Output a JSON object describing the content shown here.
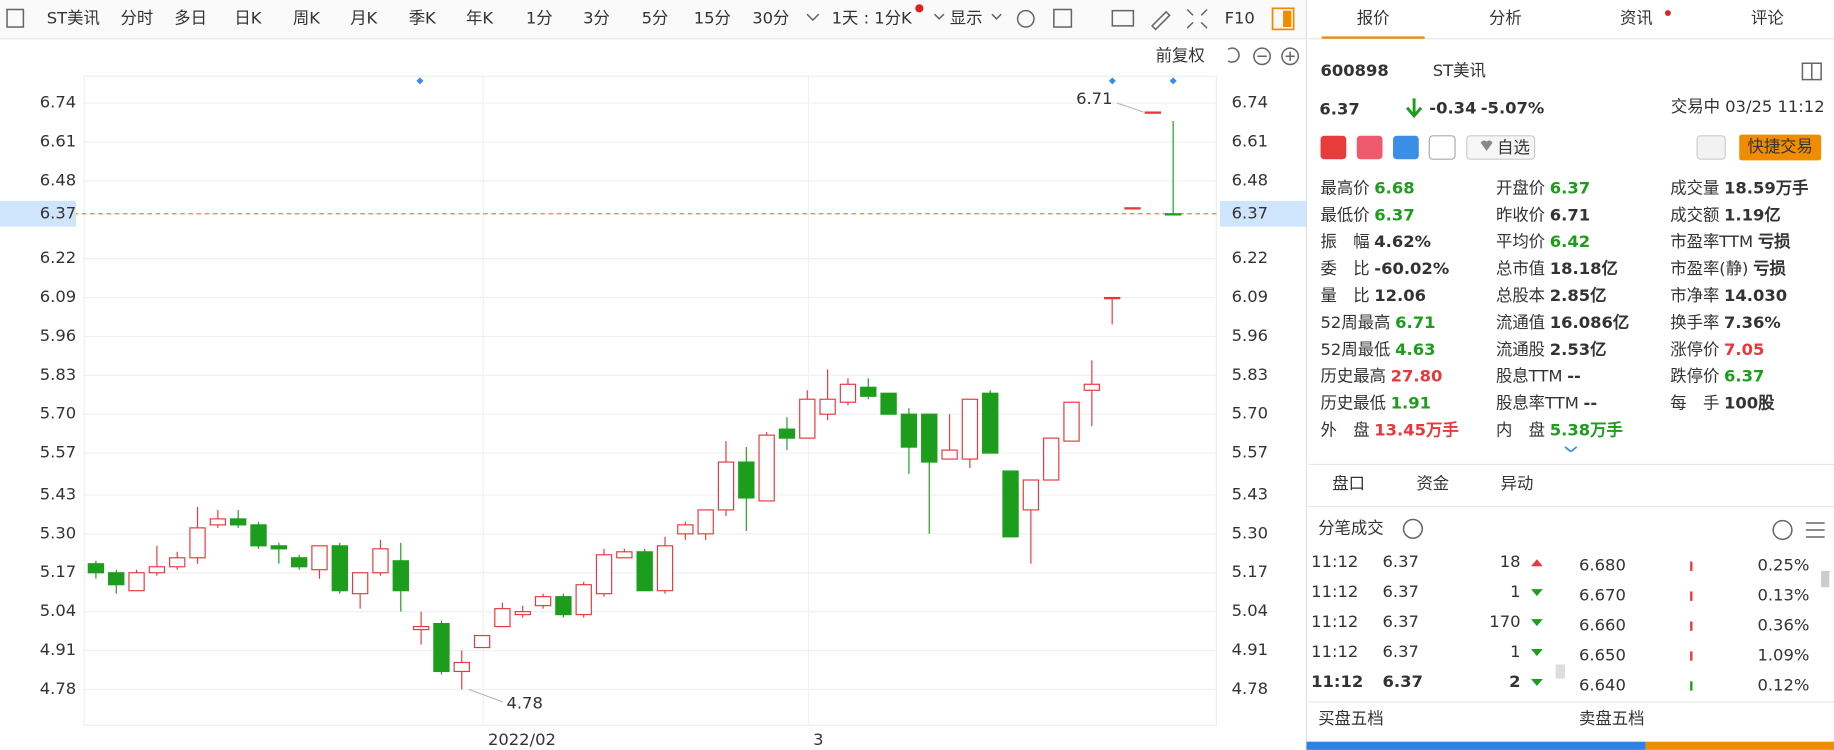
{
  "toolbar": {
    "stock": "ST美讯",
    "tabs": [
      "分时",
      "多日",
      "日K",
      "周K",
      "月K",
      "季K",
      "年K",
      "1分",
      "3分",
      "5分",
      "15分",
      "30分"
    ],
    "active": 2,
    "interval": "1天 : 1分K",
    "display": "显示",
    "f10": "F10"
  },
  "chart_data": {
    "type": "candlestick",
    "adjust": "前复权",
    "categories": [
      null,
      null,
      null,
      null,
      null,
      null,
      null,
      null,
      null,
      null,
      null,
      null,
      null,
      null,
      null,
      null,
      null,
      null,
      null,
      "2022/02",
      null,
      null,
      null,
      null,
      null,
      null,
      null,
      null,
      null,
      null,
      null,
      null,
      null,
      null,
      null,
      "3",
      null,
      null,
      null,
      null,
      null,
      null,
      null,
      null,
      null,
      null,
      null,
      null,
      null,
      null,
      null,
      null,
      null,
      null
    ],
    "open": [
      5.2,
      5.17,
      5.11,
      5.17,
      5.19,
      5.22,
      5.33,
      5.35,
      5.33,
      5.26,
      5.22,
      5.18,
      5.26,
      5.1,
      5.17,
      5.21,
      4.98,
      5.0,
      4.84,
      4.92,
      4.99,
      5.03,
      5.06,
      5.09,
      5.03,
      5.1,
      5.22,
      5.24,
      5.11,
      5.3,
      5.3,
      5.38,
      5.54,
      5.41,
      5.65,
      5.62,
      5.7,
      5.74,
      5.79,
      5.77,
      5.7,
      5.7,
      5.55,
      5.55,
      5.77,
      5.51,
      5.38,
      5.48,
      5.61,
      5.78,
      6.09,
      6.39,
      6.71,
      6.37
    ],
    "high": [
      5.21,
      5.18,
      5.18,
      5.26,
      5.24,
      5.39,
      5.38,
      5.38,
      5.34,
      5.27,
      5.23,
      5.26,
      5.27,
      5.17,
      5.28,
      5.27,
      5.04,
      5.01,
      4.91,
      4.96,
      5.07,
      5.06,
      5.1,
      5.1,
      5.14,
      5.25,
      5.25,
      5.25,
      5.29,
      5.34,
      5.38,
      5.61,
      5.59,
      5.64,
      5.69,
      5.78,
      5.85,
      5.82,
      5.82,
      5.77,
      5.72,
      5.7,
      5.7,
      5.75,
      5.78,
      5.51,
      5.48,
      5.62,
      5.74,
      5.88,
      6.09,
      6.39,
      6.71,
      6.68
    ],
    "low": [
      5.15,
      5.1,
      5.11,
      5.16,
      5.18,
      5.2,
      5.32,
      5.32,
      5.25,
      5.2,
      5.18,
      5.15,
      5.1,
      5.05,
      5.16,
      5.04,
      4.93,
      4.83,
      4.78,
      4.92,
      4.99,
      5.02,
      5.05,
      5.02,
      5.02,
      5.09,
      5.22,
      5.11,
      5.1,
      5.28,
      5.28,
      5.36,
      5.31,
      5.41,
      5.58,
      5.62,
      5.68,
      5.73,
      5.75,
      5.7,
      5.5,
      5.3,
      5.55,
      5.52,
      5.57,
      5.29,
      5.2,
      5.48,
      5.61,
      5.66,
      6.0,
      6.39,
      6.71,
      6.37
    ],
    "close": [
      5.17,
      5.13,
      5.17,
      5.19,
      5.22,
      5.32,
      5.35,
      5.33,
      5.26,
      5.25,
      5.19,
      5.26,
      5.11,
      5.17,
      5.25,
      5.11,
      4.99,
      4.84,
      4.87,
      4.96,
      5.05,
      5.04,
      5.09,
      5.03,
      5.13,
      5.23,
      5.24,
      5.11,
      5.26,
      5.33,
      5.38,
      5.54,
      5.42,
      5.63,
      5.62,
      5.75,
      5.75,
      5.8,
      5.76,
      5.7,
      5.59,
      5.54,
      5.58,
      5.75,
      5.57,
      5.29,
      5.48,
      5.62,
      5.74,
      5.8,
      6.09,
      6.39,
      6.71,
      6.37
    ],
    "up_color": "#e8383d",
    "down_color": "#1c9e1c",
    "ylim": [
      4.66,
      6.83
    ],
    "yticks": [
      6.74,
      6.61,
      6.48,
      6.22,
      6.09,
      5.96,
      5.83,
      {
        "value": 5.7,
        "label": "5.70"
      },
      5.57,
      5.43,
      {
        "value": 5.3,
        "label": "5.30"
      },
      5.17,
      5.04,
      4.91,
      4.78
    ],
    "current": 6.37,
    "high_mark": 6.71,
    "low_mark": 4.78
  },
  "quote": {
    "tabs": [
      "报价",
      "分析",
      "资讯",
      "评论"
    ],
    "code": "600898",
    "name": "ST美讯",
    "price": "6.37",
    "change": "-0.34",
    "pct": "-5.07%",
    "status": "交易中 03/25 11:12",
    "watch": "自选",
    "trade": "快捷交易",
    "fields": [
      [
        {
          "label": "最高价",
          "value": "6.68",
          "color": "down"
        },
        {
          "label": "开盘价",
          "value": "6.37",
          "color": "down"
        },
        {
          "label": "成交量",
          "value": "18.59万手",
          "color": "flat"
        }
      ],
      [
        {
          "label": "最低价",
          "value": "6.37",
          "color": "down"
        },
        {
          "label": "昨收价",
          "value": "6.71",
          "color": "flat"
        },
        {
          "label": "成交额",
          "value": "1.19亿",
          "color": "flat"
        }
      ],
      [
        {
          "label": "振　幅",
          "value": "4.62%",
          "color": "flat"
        },
        {
          "label": "平均价",
          "value": "6.42",
          "color": "down"
        },
        {
          "label": "市盈率TTM",
          "value": "亏损",
          "color": "flat"
        }
      ],
      [
        {
          "label": "委　比",
          "value": "-60.02%",
          "color": "flat"
        },
        {
          "label": "总市值",
          "value": "18.18亿",
          "color": "flat"
        },
        {
          "label": "市盈率(静)",
          "value": "亏损",
          "color": "flat"
        }
      ],
      [
        {
          "label": "量　比",
          "value": "12.06",
          "color": "flat"
        },
        {
          "label": "总股本",
          "value": "2.85亿",
          "color": "flat"
        },
        {
          "label": "市净率",
          "value": "14.030",
          "color": "flat"
        }
      ],
      [
        {
          "label": "52周最高",
          "value": "6.71",
          "color": "down"
        },
        {
          "label": "流通值",
          "value": "16.086亿",
          "color": "flat"
        },
        {
          "label": "换手率",
          "value": "7.36%",
          "color": "flat"
        }
      ],
      [
        {
          "label": "52周最低",
          "value": "4.63",
          "color": "down"
        },
        {
          "label": "流通股",
          "value": "2.53亿",
          "color": "flat"
        },
        {
          "label": "涨停价",
          "value": "7.05",
          "color": "up"
        }
      ],
      [
        {
          "label": "历史最高",
          "value": "27.80",
          "color": "up"
        },
        {
          "label": "股息TTM",
          "value": "--",
          "color": "flat"
        },
        {
          "label": "跌停价",
          "value": "6.37",
          "color": "down"
        }
      ],
      [
        {
          "label": "历史最低",
          "value": "1.91",
          "color": "down"
        },
        {
          "label": "股息率TTM",
          "value": "--",
          "color": "flat"
        },
        {
          "label": "每　手",
          "value": "100股",
          "color": "flat"
        }
      ],
      [
        {
          "label": "外　盘",
          "value": "13.45万手",
          "color": "up"
        },
        {
          "label": "内　盘",
          "value": "5.38万手",
          "color": "down"
        }
      ]
    ],
    "subtabs": [
      "盘口",
      "资金",
      "异动"
    ],
    "trades_title": "分笔成交",
    "trades": [
      {
        "time": "11:12",
        "price": "6.37",
        "volume": 18,
        "dir": "up"
      },
      {
        "time": "11:12",
        "price": "6.37",
        "volume": 1,
        "dir": "down"
      },
      {
        "time": "11:12",
        "price": "6.37",
        "volume": 170,
        "dir": "down"
      },
      {
        "time": "11:12",
        "price": "6.37",
        "volume": 1,
        "dir": "down"
      },
      {
        "time": "11:12",
        "price": "6.37",
        "volume": 2,
        "dir": "down"
      }
    ],
    "distribution": [
      {
        "price": "6.680",
        "pct": "0.25%"
      },
      {
        "price": "6.670",
        "pct": "0.13%"
      },
      {
        "price": "6.660",
        "pct": "0.36%"
      },
      {
        "price": "6.650",
        "pct": "1.09%"
      },
      {
        "price": "6.640",
        "pct": "0.12%"
      }
    ],
    "buy5": "买盘五档",
    "sell5": "卖盘五档"
  }
}
